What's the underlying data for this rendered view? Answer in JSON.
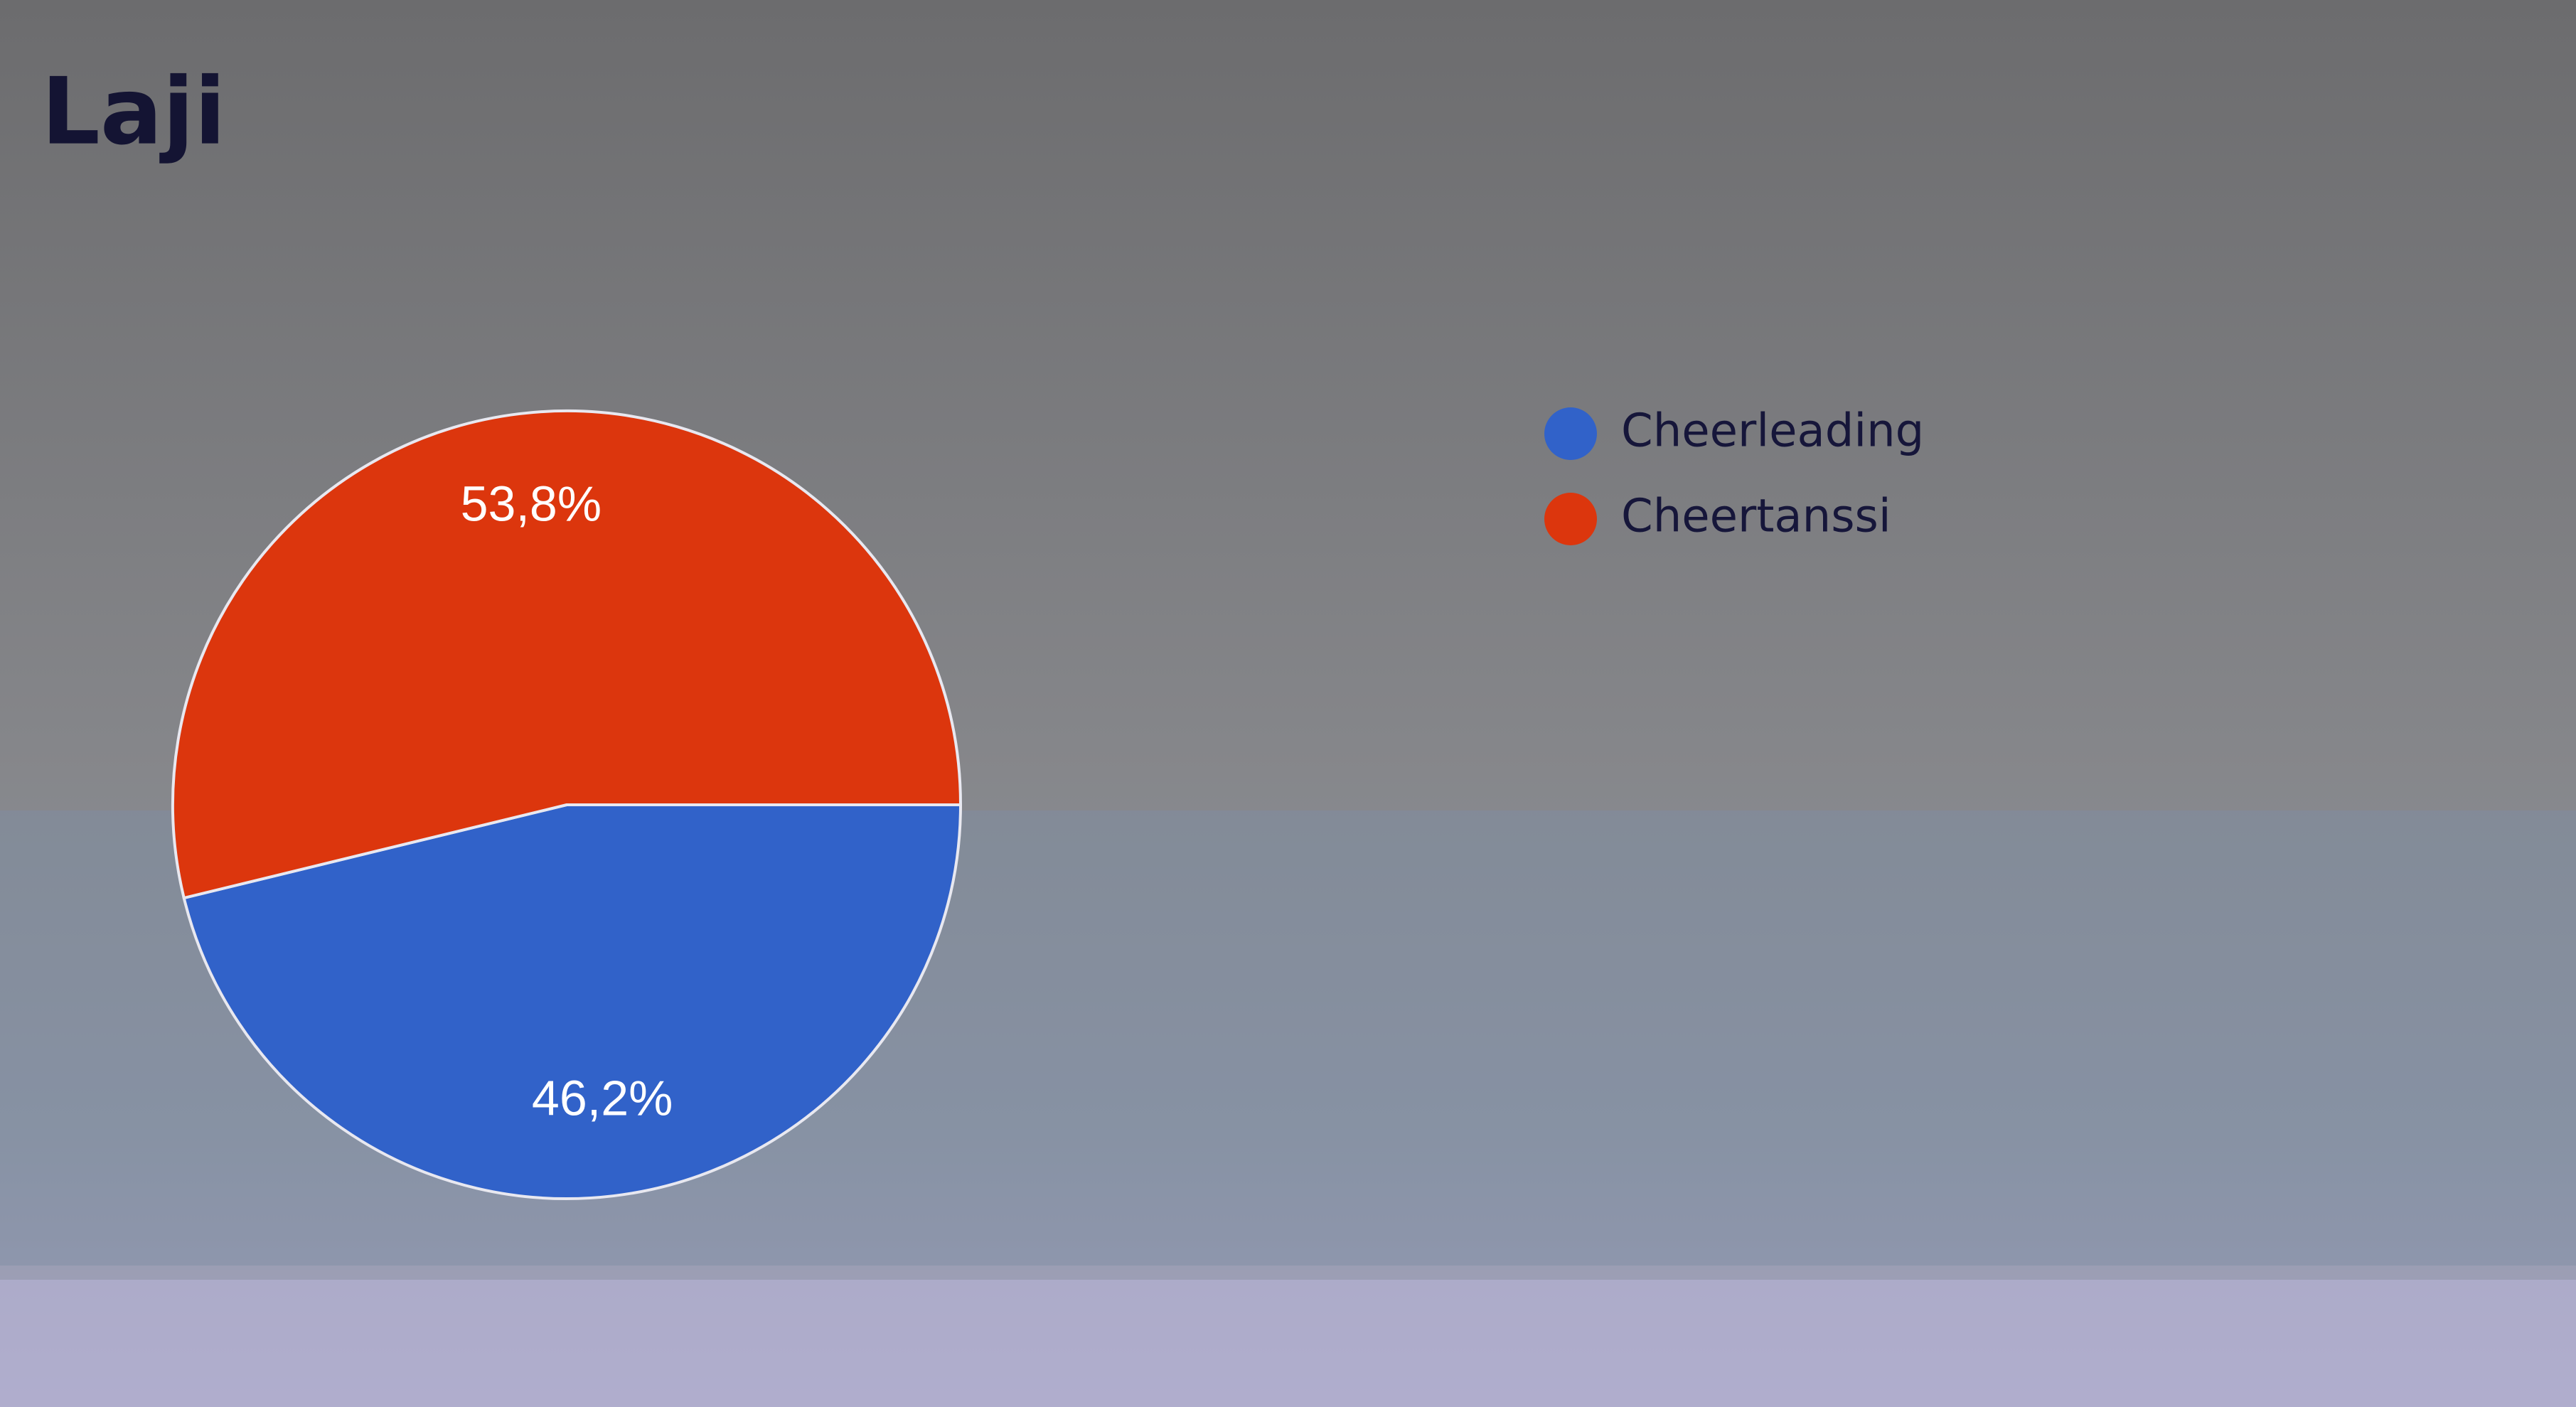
{
  "chart_data": {
    "type": "pie",
    "title": "Laji",
    "categories": [
      "Cheerleading",
      "Cheertanssi"
    ],
    "values": [
      46.2,
      53.8
    ],
    "value_labels": [
      "46,2%",
      "53,8%"
    ],
    "colors": [
      "#3162c9",
      "#dc360d"
    ]
  }
}
